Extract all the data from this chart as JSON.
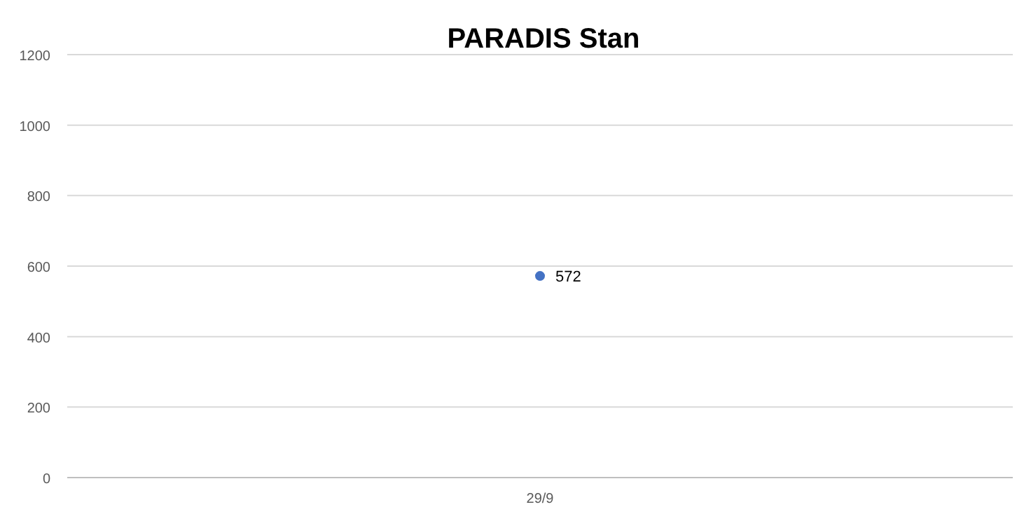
{
  "chart_data": {
    "type": "line",
    "title": "PARADIS Stan",
    "categories": [
      "29/9"
    ],
    "series": [
      {
        "color": "#4472c4",
        "values": [
          572
        ]
      }
    ],
    "ylim": [
      0,
      1200
    ],
    "yticks": [
      0,
      200,
      400,
      600,
      800,
      1000,
      1200
    ],
    "grid": "y",
    "marker": "circle",
    "data_labels": true
  }
}
